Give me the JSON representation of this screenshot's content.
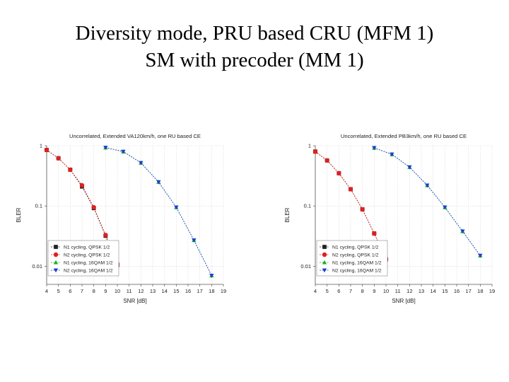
{
  "slide": {
    "title_line1": "Diversity mode, PRU based CRU (MFM 1)",
    "title_line2": "SM with precoder (MM 1)"
  },
  "chart_data": [
    {
      "type": "line",
      "title": "Uncorrelated, Extended VA120km/h, one RU based CE",
      "xlabel": "SNR [dB]",
      "ylabel": "BLER",
      "yscale": "log",
      "xlim": [
        4,
        19
      ],
      "ylim": [
        0.005,
        1
      ],
      "x_ticks": [
        "4",
        "5",
        "6",
        "7",
        "8",
        "9",
        "10",
        "11",
        "12",
        "13",
        "14",
        "15",
        "16",
        "17",
        "18",
        "19"
      ],
      "y_ticks": [
        {
          "value": 1,
          "label": "1"
        },
        {
          "value": 0.1,
          "label": "0.1"
        },
        {
          "value": 0.01,
          "label": "0.01"
        }
      ],
      "legend_position": "bottom-left",
      "series": [
        {
          "name": "N1 cycling, QPSK 1/2",
          "marker": "square",
          "color": "#222222",
          "x": [
            4,
            5,
            6,
            7,
            8,
            9,
            10
          ],
          "y": [
            0.85,
            0.62,
            0.4,
            0.21,
            0.092,
            0.032,
            0.0105
          ]
        },
        {
          "name": "N2 cycling, QPSK 1/2",
          "marker": "circle",
          "color": "#e02020",
          "x": [
            4,
            5,
            6,
            7,
            8,
            9,
            10
          ],
          "y": [
            0.85,
            0.62,
            0.4,
            0.22,
            0.095,
            0.033,
            0.011
          ]
        },
        {
          "name": "N1 cycling, 16QAM 1/2",
          "marker": "triangle-up",
          "color": "#20b020",
          "x": [
            9,
            10.5,
            12,
            13.5,
            15,
            16.5,
            18
          ],
          "y": [
            0.93,
            0.8,
            0.52,
            0.25,
            0.095,
            0.027,
            0.007
          ]
        },
        {
          "name": "N2 cycling, 16QAM 1/2",
          "marker": "triangle-down",
          "color": "#1a3fcf",
          "x": [
            9,
            10.5,
            12,
            13.5,
            15,
            16.5,
            18
          ],
          "y": [
            0.93,
            0.8,
            0.52,
            0.25,
            0.095,
            0.027,
            0.007
          ]
        }
      ]
    },
    {
      "type": "line",
      "title": "Uncorrelated, Extended PB3km/h, one RU based CE",
      "xlabel": "SNR [dB]",
      "ylabel": "BLER",
      "yscale": "log",
      "xlim": [
        4,
        19
      ],
      "ylim": [
        0.005,
        1
      ],
      "x_ticks": [
        "4",
        "5",
        "6",
        "7",
        "8",
        "9",
        "10",
        "11",
        "12",
        "13",
        "14",
        "15",
        "16",
        "17",
        "18",
        "19"
      ],
      "y_ticks": [
        {
          "value": 1,
          "label": "1"
        },
        {
          "value": 0.1,
          "label": "0.1"
        },
        {
          "value": 0.01,
          "label": "0.01"
        }
      ],
      "legend_position": "bottom-left",
      "series": [
        {
          "name": "N1 cycling, QPSK 1/2",
          "marker": "square",
          "color": "#222222",
          "x": [
            4,
            5,
            6,
            7,
            8,
            9,
            10
          ],
          "y": [
            0.8,
            0.57,
            0.35,
            0.19,
            0.088,
            0.035,
            0.013
          ]
        },
        {
          "name": "N2 cycling, QPSK 1/2",
          "marker": "circle",
          "color": "#e02020",
          "x": [
            4,
            5,
            6,
            7,
            8,
            9,
            10
          ],
          "y": [
            0.8,
            0.57,
            0.35,
            0.19,
            0.088,
            0.035,
            0.013
          ]
        },
        {
          "name": "N1 cycling, 16QAM 1/2",
          "marker": "triangle-up",
          "color": "#20b020",
          "x": [
            9,
            10.5,
            12,
            13.5,
            15,
            16.5,
            18
          ],
          "y": [
            0.92,
            0.72,
            0.44,
            0.22,
            0.095,
            0.038,
            0.015
          ]
        },
        {
          "name": "N2 cycling, 16QAM 1/2",
          "marker": "triangle-down",
          "color": "#1a3fcf",
          "x": [
            9,
            10.5,
            12,
            13.5,
            15,
            16.5,
            18
          ],
          "y": [
            0.92,
            0.72,
            0.44,
            0.22,
            0.095,
            0.038,
            0.015
          ]
        }
      ]
    }
  ]
}
